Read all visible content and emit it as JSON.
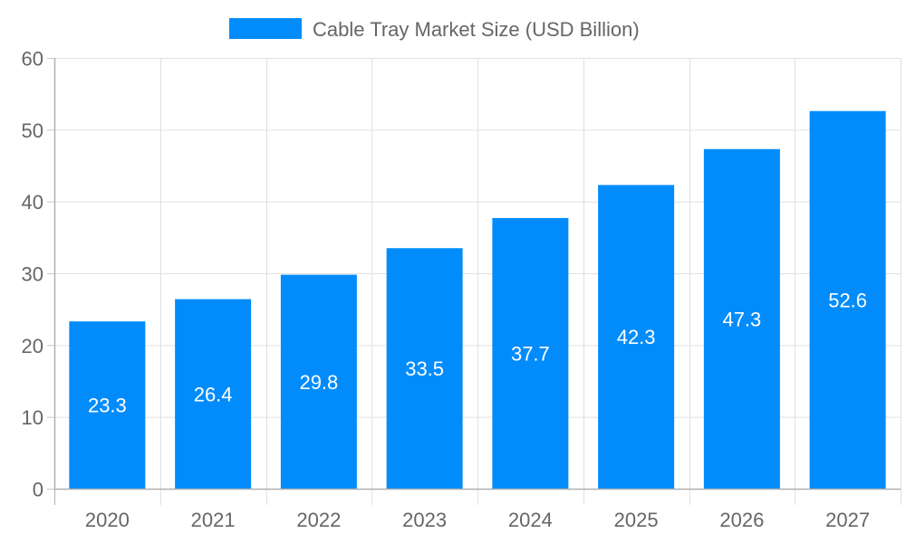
{
  "chart_data": {
    "type": "bar",
    "title": "",
    "xlabel": "",
    "ylabel": "",
    "categories": [
      "2020",
      "2021",
      "2022",
      "2023",
      "2024",
      "2025",
      "2026",
      "2027"
    ],
    "series": [
      {
        "name": "Cable Tray Market Size (USD Billion)",
        "values": [
          23.3,
          26.4,
          29.8,
          33.5,
          37.7,
          42.3,
          47.3,
          52.6
        ],
        "color": "#028cfb"
      }
    ],
    "data_labels": [
      "23.3",
      "26.4",
      "29.8",
      "33.5",
      "37.7",
      "42.3",
      "47.3",
      "52.6"
    ],
    "ylim": [
      0,
      60
    ],
    "yticks": [
      "0",
      "10",
      "20",
      "30",
      "40",
      "50",
      "60"
    ],
    "grid": true,
    "legend_position": "top"
  }
}
